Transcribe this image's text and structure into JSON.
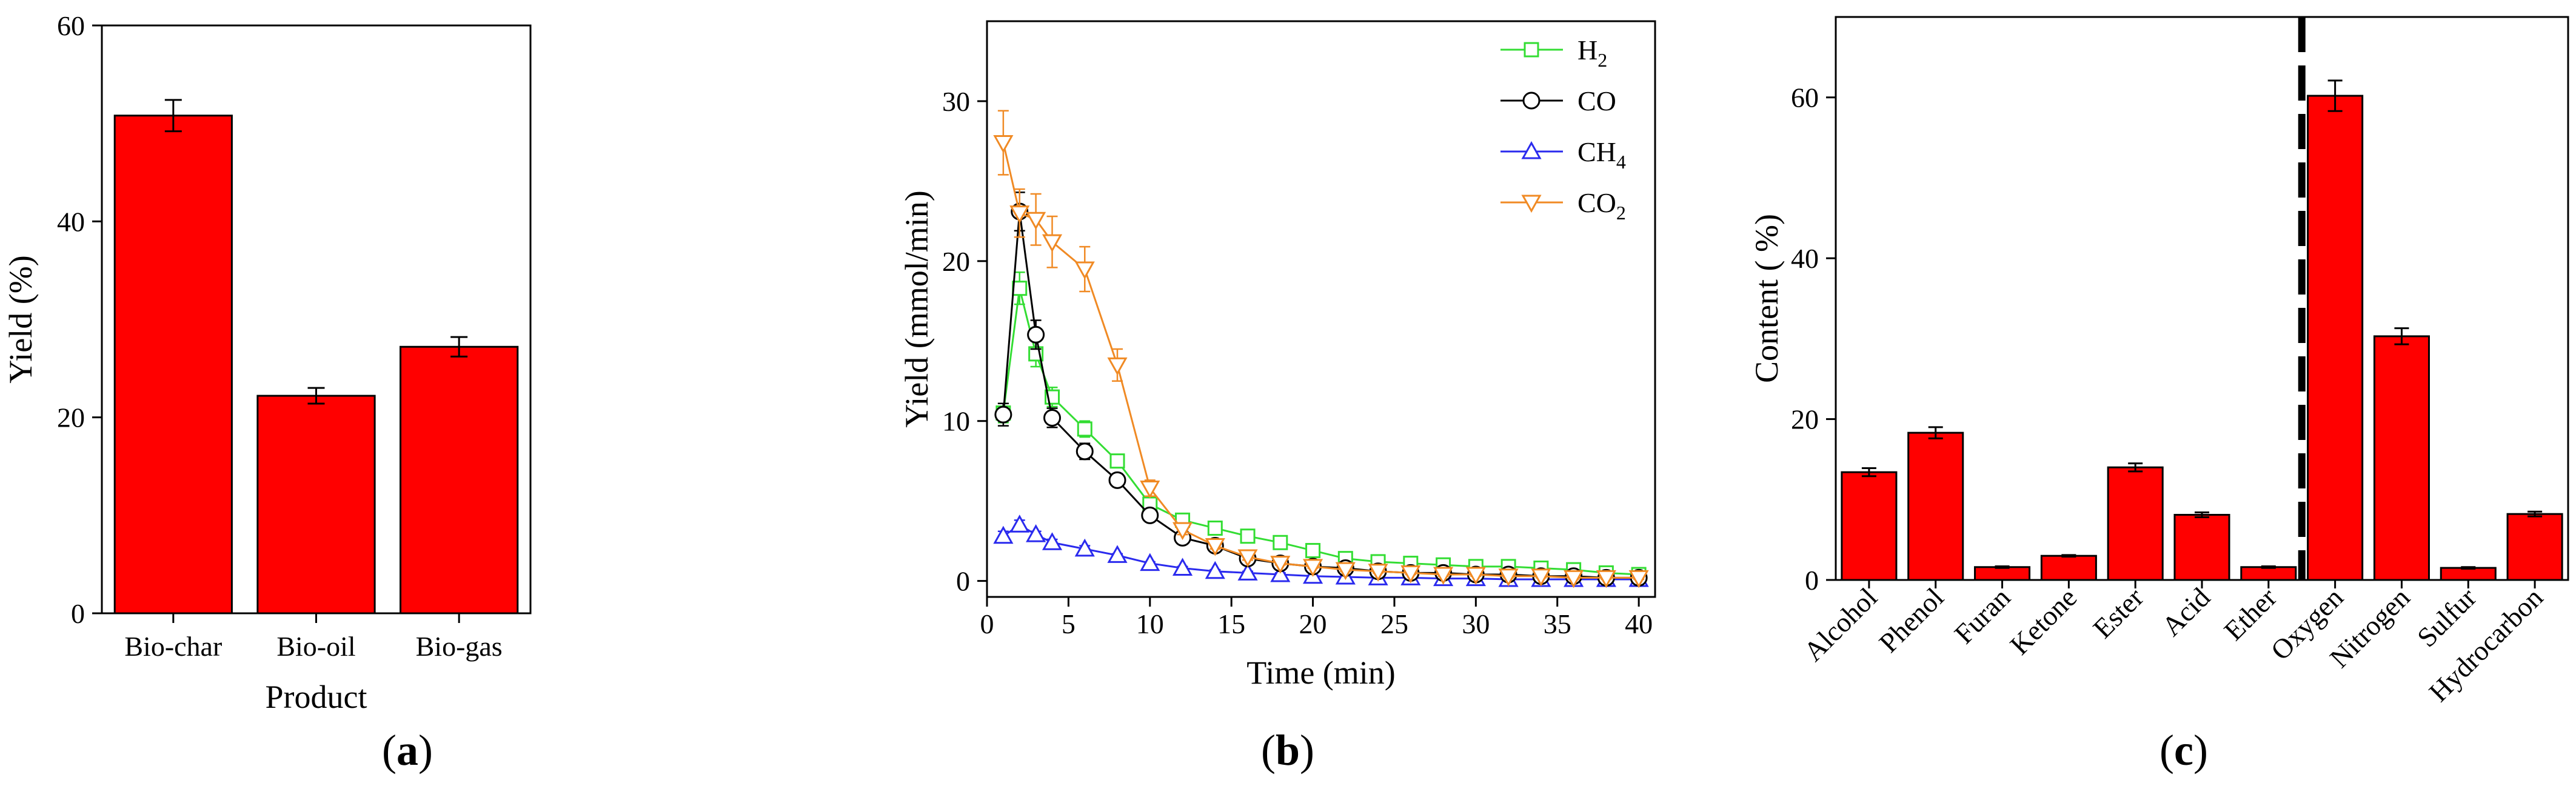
{
  "colors": {
    "bar": "#ff0000",
    "h2": "#33dd33",
    "co": "#000000",
    "ch4": "#2a2aee",
    "co2": "#f08a24"
  },
  "chart_data": [
    {
      "type": "bar",
      "panel": "(a)",
      "panel_paren_open": "(",
      "panel_letter": "a",
      "panel_paren_close": ")",
      "categories": [
        "Bio-char",
        "Bio-oil",
        "Bio-gas"
      ],
      "values": [
        50.8,
        22.2,
        27.2
      ],
      "errors": [
        1.6,
        0.8,
        1.0
      ],
      "xlabel": "Product",
      "ylabel": "Yield (%)",
      "ylim": [
        0,
        60
      ],
      "yticks": [
        0,
        20,
        40,
        60
      ]
    },
    {
      "type": "line",
      "panel": "(b)",
      "panel_paren_open": "(",
      "panel_letter": "b",
      "panel_paren_close": ")",
      "xlabel": "Time (min)",
      "ylabel": "Yield (mmol/min)",
      "xlim": [
        0,
        41
      ],
      "ylim": [
        -1,
        35
      ],
      "xticks": [
        0,
        5,
        10,
        15,
        20,
        25,
        30,
        35,
        40
      ],
      "yticks": [
        0,
        10,
        20,
        30
      ],
      "legend_position": "top-right",
      "series": [
        {
          "name": "H2",
          "label_main": "H",
          "label_sub": "2",
          "marker": "square",
          "color_key": "h2",
          "x": [
            1,
            2,
            3,
            4,
            6,
            8,
            10,
            12,
            14,
            16,
            18,
            20,
            22,
            24,
            26,
            28,
            30,
            32,
            34,
            36,
            38,
            40
          ],
          "y": [
            10.5,
            18.3,
            14.2,
            11.5,
            9.5,
            7.5,
            4.8,
            3.8,
            3.3,
            2.8,
            2.4,
            1.9,
            1.4,
            1.2,
            1.1,
            1.0,
            0.9,
            0.9,
            0.8,
            0.7,
            0.5,
            0.4
          ],
          "err": [
            0.6,
            1.0,
            0.8,
            0.6,
            0.5,
            0.4,
            0.3,
            0.2,
            0.2,
            0.2,
            0.2,
            0.2,
            0.1,
            0.1,
            0.1,
            0.1,
            0.1,
            0.1,
            0.1,
            0.1,
            0.1,
            0.1
          ]
        },
        {
          "name": "CO",
          "label_main": "CO",
          "label_sub": "",
          "marker": "circle",
          "color_key": "co",
          "x": [
            1,
            2,
            3,
            4,
            6,
            8,
            10,
            12,
            14,
            16,
            18,
            20,
            22,
            24,
            26,
            28,
            30,
            32,
            34,
            36,
            38,
            40
          ],
          "y": [
            10.4,
            23.1,
            15.4,
            10.2,
            8.1,
            6.3,
            4.1,
            2.7,
            2.2,
            1.4,
            1.1,
            0.9,
            0.8,
            0.6,
            0.5,
            0.5,
            0.4,
            0.4,
            0.3,
            0.3,
            0.2,
            0.2
          ],
          "err": [
            0.7,
            1.2,
            0.9,
            0.6,
            0.5,
            0.4,
            0.3,
            0.2,
            0.2,
            0.1,
            0.1,
            0.1,
            0.1,
            0.1,
            0.1,
            0.1,
            0.1,
            0.1,
            0.1,
            0.1,
            0.1,
            0.1
          ]
        },
        {
          "name": "CH4",
          "label_main": "CH",
          "label_sub": "4",
          "marker": "triangle-up",
          "color_key": "ch4",
          "x": [
            1,
            2,
            3,
            4,
            6,
            8,
            10,
            12,
            14,
            16,
            18,
            20,
            22,
            24,
            26,
            28,
            30,
            32,
            34,
            36,
            38,
            40
          ],
          "y": [
            2.8,
            3.5,
            2.9,
            2.4,
            2.0,
            1.6,
            1.1,
            0.8,
            0.6,
            0.5,
            0.4,
            0.3,
            0.25,
            0.2,
            0.2,
            0.15,
            0.15,
            0.1,
            0.1,
            0.1,
            0.1,
            0.1
          ],
          "err": [
            0.3,
            0.3,
            0.2,
            0.2,
            0.2,
            0.1,
            0.1,
            0.1,
            0.1,
            0.1,
            0.1,
            0.05,
            0.05,
            0.05,
            0.05,
            0.05,
            0.05,
            0.05,
            0.05,
            0.05,
            0.05,
            0.05
          ]
        },
        {
          "name": "CO2",
          "label_main": "CO",
          "label_sub": "2",
          "marker": "triangle-down",
          "color_key": "co2",
          "x": [
            1,
            2,
            3,
            4,
            6,
            8,
            10,
            12,
            14,
            16,
            18,
            20,
            22,
            24,
            26,
            28,
            30,
            32,
            34,
            36,
            38,
            40
          ],
          "y": [
            27.4,
            23.0,
            22.6,
            21.2,
            19.5,
            13.5,
            5.8,
            3.2,
            2.2,
            1.5,
            1.1,
            0.9,
            0.7,
            0.6,
            0.5,
            0.4,
            0.4,
            0.3,
            0.3,
            0.2,
            0.2,
            0.2
          ],
          "err": [
            2.0,
            1.5,
            1.6,
            1.6,
            1.4,
            1.0,
            0.5,
            0.3,
            0.2,
            0.2,
            0.1,
            0.1,
            0.1,
            0.1,
            0.1,
            0.1,
            0.1,
            0.1,
            0.1,
            0.1,
            0.1,
            0.1
          ]
        }
      ]
    },
    {
      "type": "bar",
      "panel": "(c)",
      "panel_paren_open": "(",
      "panel_letter": "c",
      "panel_paren_close": ")",
      "categories": [
        "Alcohol",
        "Phenol",
        "Furan",
        "Ketone",
        "Ester",
        "Acid",
        "Ether",
        "Oxygen",
        "Nitrogen",
        "Sulfur",
        "Hydrocarbon"
      ],
      "values": [
        13.4,
        18.3,
        1.6,
        3.0,
        14.0,
        8.1,
        1.6,
        60.2,
        30.3,
        1.5,
        8.2
      ],
      "errors": [
        0.5,
        0.7,
        0.1,
        0.1,
        0.5,
        0.3,
        0.1,
        1.9,
        1.0,
        0.1,
        0.3
      ],
      "ylabel": "Content (  %)",
      "ylim": [
        0,
        70
      ],
      "yticks": [
        0,
        20,
        40,
        60
      ],
      "divider_after_category": "Ether"
    }
  ]
}
